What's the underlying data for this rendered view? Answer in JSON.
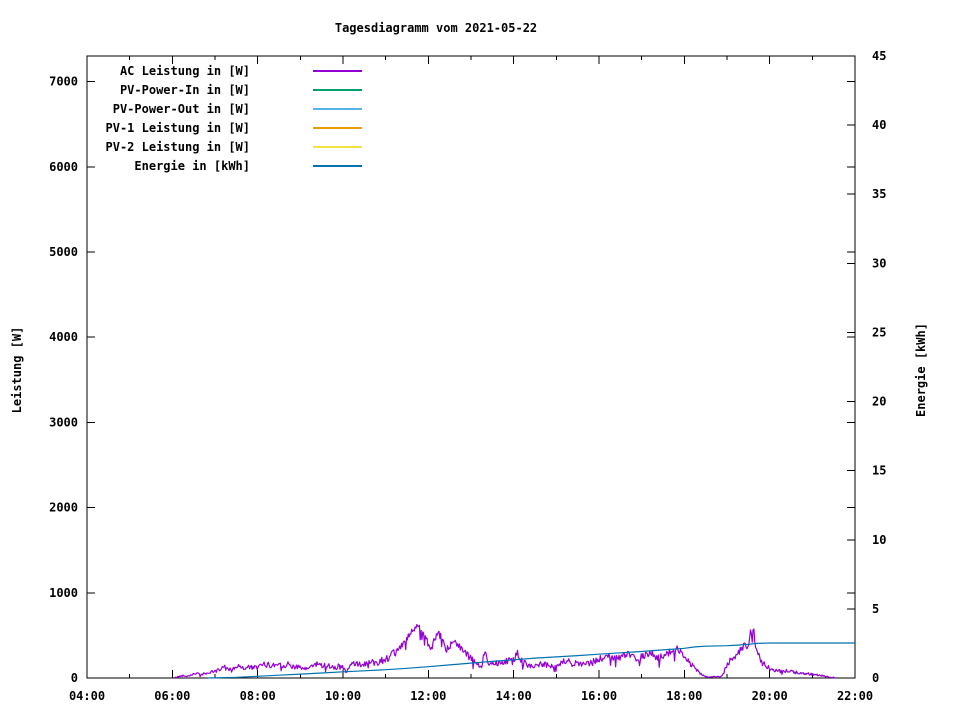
{
  "title": "Tagesdiagramm vom 2021-05-22",
  "colors": {
    "background": "#ffffff",
    "axis": "#000000",
    "text": "#000000"
  },
  "chart_data": {
    "type": "line",
    "title": "Tagesdiagramm vom 2021-05-22",
    "grid": false,
    "legend_position": "top-left-inside",
    "x_axis": {
      "unit": "time",
      "range_hours": [
        4,
        22
      ],
      "major_tick_every_hours": 2,
      "minor_tick_every_hours": 1,
      "tick_labels": [
        "04:00",
        "06:00",
        "08:00",
        "10:00",
        "12:00",
        "14:00",
        "16:00",
        "18:00",
        "20:00",
        "22:00"
      ]
    },
    "y_left": {
      "label": "Leistung [W]",
      "range": [
        0,
        7300
      ],
      "ticks": [
        0,
        1000,
        2000,
        3000,
        4000,
        5000,
        6000,
        7000
      ]
    },
    "y_right": {
      "label": "Energie [kWh]",
      "range": [
        0,
        45
      ],
      "ticks": [
        0,
        5,
        10,
        15,
        20,
        25,
        30,
        35,
        40,
        45
      ]
    },
    "legend": [
      {
        "label": "AC Leistung in [W]",
        "color": "#9400D3"
      },
      {
        "label": "PV-Power-In in [W]",
        "color": "#009E73"
      },
      {
        "label": "PV-Power-Out in [W]",
        "color": "#56B4E9"
      },
      {
        "label": "PV-1 Leistung in [W]",
        "color": "#E69F00"
      },
      {
        "label": "PV-2 Leistung in [W]",
        "color": "#F0E442"
      },
      {
        "label": "Energie in [kWh]",
        "color": "#0072B2"
      }
    ],
    "series": [
      {
        "name": "AC Leistung in [W]",
        "color": "#9400D3",
        "axis": "left",
        "unit": "W",
        "style": "noisy-line",
        "noise_seed": 42,
        "noise_step_hours": 0.02,
        "points": [
          [
            6.05,
            3
          ],
          [
            6.15,
            18
          ],
          [
            6.25,
            30
          ],
          [
            6.35,
            25
          ],
          [
            6.45,
            40
          ],
          [
            6.55,
            58
          ],
          [
            6.65,
            38
          ],
          [
            6.75,
            52
          ],
          [
            6.9,
            68
          ],
          [
            7.0,
            80
          ],
          [
            7.1,
            95
          ],
          [
            7.2,
            145
          ],
          [
            7.3,
            100
          ],
          [
            7.4,
            118
          ],
          [
            7.5,
            132
          ],
          [
            7.6,
            142
          ],
          [
            7.7,
            112
          ],
          [
            7.8,
            135
          ],
          [
            7.9,
            120
          ],
          [
            8.0,
            128
          ],
          [
            8.1,
            152
          ],
          [
            8.2,
            165
          ],
          [
            8.3,
            148
          ],
          [
            8.4,
            158
          ],
          [
            8.5,
            172
          ],
          [
            8.6,
            155
          ],
          [
            8.7,
            162
          ],
          [
            8.8,
            148
          ],
          [
            8.9,
            135
          ],
          [
            9.0,
            120
          ],
          [
            9.1,
            100
          ],
          [
            9.2,
            128
          ],
          [
            9.3,
            152
          ],
          [
            9.4,
            165
          ],
          [
            9.5,
            158
          ],
          [
            9.6,
            150
          ],
          [
            9.7,
            142
          ],
          [
            9.8,
            128
          ],
          [
            9.9,
            138
          ],
          [
            10.0,
            132
          ],
          [
            10.07,
            65
          ],
          [
            10.15,
            148
          ],
          [
            10.3,
            168
          ],
          [
            10.45,
            162
          ],
          [
            10.6,
            178
          ],
          [
            10.75,
            192
          ],
          [
            10.9,
            208
          ],
          [
            11.0,
            228
          ],
          [
            11.1,
            258
          ],
          [
            11.2,
            298
          ],
          [
            11.3,
            348
          ],
          [
            11.4,
            408
          ],
          [
            11.5,
            468
          ],
          [
            11.6,
            528
          ],
          [
            11.7,
            578
          ],
          [
            11.8,
            615
          ],
          [
            11.88,
            585
          ],
          [
            11.95,
            480
          ],
          [
            12.05,
            330
          ],
          [
            12.15,
            455
          ],
          [
            12.25,
            515
          ],
          [
            12.32,
            462
          ],
          [
            12.4,
            315
          ],
          [
            12.5,
            375
          ],
          [
            12.6,
            438
          ],
          [
            12.7,
            415
          ],
          [
            12.78,
            348
          ],
          [
            12.88,
            295
          ],
          [
            12.95,
            248
          ],
          [
            13.05,
            205
          ],
          [
            13.15,
            158
          ],
          [
            13.25,
            135
          ],
          [
            13.32,
            325
          ],
          [
            13.4,
            205
          ],
          [
            13.5,
            172
          ],
          [
            13.6,
            182
          ],
          [
            13.7,
            198
          ],
          [
            13.8,
            215
          ],
          [
            13.9,
            198
          ],
          [
            14.0,
            208
          ],
          [
            14.08,
            325
          ],
          [
            14.18,
            198
          ],
          [
            14.3,
            162
          ],
          [
            14.45,
            148
          ],
          [
            14.6,
            168
          ],
          [
            14.75,
            158
          ],
          [
            14.9,
            148
          ],
          [
            15.0,
            132
          ],
          [
            15.15,
            188
          ],
          [
            15.3,
            198
          ],
          [
            15.45,
            172
          ],
          [
            15.6,
            158
          ],
          [
            15.75,
            172
          ],
          [
            15.9,
            198
          ],
          [
            16.05,
            228
          ],
          [
            16.2,
            262
          ],
          [
            16.35,
            232
          ],
          [
            16.5,
            248
          ],
          [
            16.65,
            278
          ],
          [
            16.8,
            252
          ],
          [
            16.95,
            238
          ],
          [
            17.1,
            272
          ],
          [
            17.25,
            288
          ],
          [
            17.4,
            238
          ],
          [
            17.55,
            268
          ],
          [
            17.7,
            318
          ],
          [
            17.82,
            352
          ],
          [
            17.92,
            308
          ],
          [
            18.0,
            262
          ],
          [
            18.1,
            198
          ],
          [
            18.2,
            148
          ],
          [
            18.3,
            88
          ],
          [
            18.4,
            42
          ],
          [
            18.5,
            15
          ],
          [
            18.62,
            8
          ],
          [
            18.72,
            22
          ],
          [
            18.82,
            12
          ],
          [
            18.92,
            58
          ],
          [
            19.0,
            168
          ],
          [
            19.1,
            238
          ],
          [
            19.2,
            268
          ],
          [
            19.3,
            318
          ],
          [
            19.4,
            378
          ],
          [
            19.5,
            355
          ],
          [
            19.56,
            598
          ],
          [
            19.59,
            415
          ],
          [
            19.62,
            638
          ],
          [
            19.66,
            372
          ],
          [
            19.72,
            295
          ],
          [
            19.8,
            198
          ],
          [
            19.9,
            142
          ],
          [
            20.0,
            112
          ],
          [
            20.15,
            92
          ],
          [
            20.3,
            76
          ],
          [
            20.45,
            86
          ],
          [
            20.6,
            66
          ],
          [
            20.8,
            56
          ],
          [
            21.0,
            46
          ],
          [
            21.2,
            30
          ],
          [
            21.35,
            16
          ],
          [
            21.55,
            4
          ]
        ]
      },
      {
        "name": "PV-Power-In in [W]",
        "color": "#009E73",
        "axis": "left",
        "unit": "W",
        "style": "line",
        "points": []
      },
      {
        "name": "PV-Power-Out in [W]",
        "color": "#56B4E9",
        "axis": "left",
        "unit": "W",
        "style": "line",
        "points": []
      },
      {
        "name": "PV-1 Leistung in [W]",
        "color": "#E69F00",
        "axis": "left",
        "unit": "W",
        "style": "line",
        "points": []
      },
      {
        "name": "PV-2 Leistung in [W]",
        "color": "#F0E442",
        "axis": "left",
        "unit": "W",
        "style": "line",
        "points": []
      },
      {
        "name": "Energie in [kWh]",
        "color": "#0072B2",
        "axis": "right",
        "unit": "kWh",
        "style": "line",
        "points": [
          [
            6.83,
            0
          ],
          [
            7.5,
            0.05
          ],
          [
            8.0,
            0.12
          ],
          [
            8.5,
            0.2
          ],
          [
            9.0,
            0.28
          ],
          [
            9.5,
            0.36
          ],
          [
            10.0,
            0.45
          ],
          [
            10.5,
            0.52
          ],
          [
            11.0,
            0.6
          ],
          [
            11.5,
            0.7
          ],
          [
            12.0,
            0.82
          ],
          [
            12.5,
            0.95
          ],
          [
            13.0,
            1.08
          ],
          [
            13.5,
            1.2
          ],
          [
            14.0,
            1.32
          ],
          [
            14.5,
            1.44
          ],
          [
            15.0,
            1.53
          ],
          [
            15.5,
            1.62
          ],
          [
            16.0,
            1.72
          ],
          [
            16.5,
            1.82
          ],
          [
            17.0,
            1.92
          ],
          [
            17.5,
            2.03
          ],
          [
            18.0,
            2.15
          ],
          [
            18.25,
            2.25
          ],
          [
            18.5,
            2.3
          ],
          [
            19.0,
            2.34
          ],
          [
            19.25,
            2.38
          ],
          [
            19.5,
            2.44
          ],
          [
            19.7,
            2.5
          ],
          [
            19.9,
            2.52
          ],
          [
            20.0,
            2.53
          ],
          [
            22.0,
            2.53
          ]
        ]
      }
    ]
  }
}
